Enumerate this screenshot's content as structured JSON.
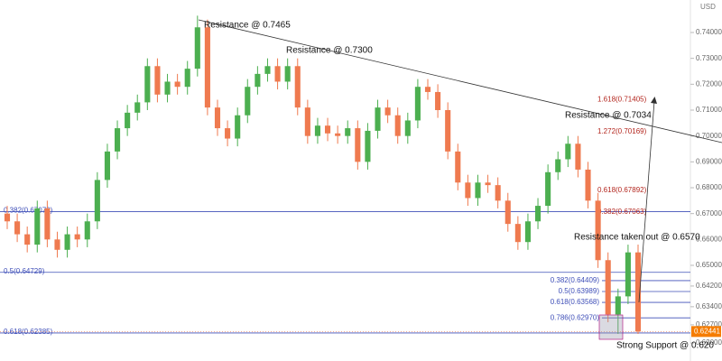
{
  "chart_data": {
    "type": "candlestick",
    "axis_label": "USD",
    "up_color": "#4caf50",
    "down_color": "#ef7a4f",
    "level_color": "#3f4fb8",
    "extension_color": "#b3261e",
    "grid": false,
    "ylim": [
      0.61302,
      0.75256
    ],
    "yticks": [
      {
        "value": 0.62,
        "label": "0.62000"
      },
      {
        "value": 0.627,
        "label": "0.62700"
      },
      {
        "value": 0.634,
        "label": "0.63400"
      },
      {
        "value": 0.642,
        "label": "0.64200"
      },
      {
        "value": 0.65,
        "label": "0.65000"
      },
      {
        "value": 0.66,
        "label": "0.66000"
      },
      {
        "value": 0.67,
        "label": "0.67000"
      },
      {
        "value": 0.68,
        "label": "0.68000"
      },
      {
        "value": 0.69,
        "label": "0.69000"
      },
      {
        "value": 0.7,
        "label": "0.70000"
      },
      {
        "value": 0.71,
        "label": "0.71000"
      },
      {
        "value": 0.72,
        "label": "0.72000"
      },
      {
        "value": 0.73,
        "label": "0.73000"
      },
      {
        "value": 0.74,
        "label": "0.74000"
      }
    ],
    "open": [
      0.67,
      0.667,
      0.662,
      0.658,
      0.672,
      0.66,
      0.656,
      0.662,
      0.66,
      0.667,
      0.683,
      0.694,
      0.703,
      0.709,
      0.713,
      0.727,
      0.716,
      0.721,
      0.719,
      0.726,
      0.742,
      0.711,
      0.703,
      0.699,
      0.708,
      0.719,
      0.724,
      0.727,
      0.721,
      0.727,
      0.711,
      0.7,
      0.704,
      0.701,
      0.7,
      0.703,
      0.69,
      0.702,
      0.711,
      0.708,
      0.7,
      0.706,
      0.719,
      0.717,
      0.71,
      0.694,
      0.682,
      0.676,
      0.682,
      0.681,
      0.675,
      0.666,
      0.659,
      0.667,
      0.673,
      0.686,
      0.691,
      0.697,
      0.687,
      0.675,
      0.652,
      0.631,
      0.638,
      0.655
    ],
    "high": [
      0.673,
      0.67,
      0.665,
      0.675,
      0.675,
      0.663,
      0.665,
      0.665,
      0.67,
      0.686,
      0.697,
      0.706,
      0.712,
      0.716,
      0.73,
      0.73,
      0.724,
      0.724,
      0.729,
      0.7465,
      0.745,
      0.714,
      0.706,
      0.711,
      0.722,
      0.727,
      0.73,
      0.73,
      0.73,
      0.73,
      0.714,
      0.707,
      0.707,
      0.704,
      0.706,
      0.706,
      0.705,
      0.714,
      0.714,
      0.711,
      0.709,
      0.722,
      0.722,
      0.72,
      0.713,
      0.697,
      0.685,
      0.685,
      0.685,
      0.684,
      0.678,
      0.669,
      0.67,
      0.676,
      0.689,
      0.694,
      0.7,
      0.7,
      0.69,
      0.678,
      0.655,
      0.641,
      0.658,
      0.658
    ],
    "low": [
      0.664,
      0.659,
      0.655,
      0.655,
      0.657,
      0.653,
      0.653,
      0.657,
      0.657,
      0.664,
      0.68,
      0.691,
      0.7,
      0.706,
      0.71,
      0.713,
      0.713,
      0.716,
      0.716,
      0.723,
      0.708,
      0.7,
      0.696,
      0.696,
      0.705,
      0.716,
      0.721,
      0.718,
      0.718,
      0.708,
      0.697,
      0.697,
      0.698,
      0.697,
      0.697,
      0.687,
      0.687,
      0.699,
      0.705,
      0.697,
      0.697,
      0.703,
      0.714,
      0.707,
      0.691,
      0.679,
      0.673,
      0.673,
      0.678,
      0.672,
      0.663,
      0.656,
      0.656,
      0.664,
      0.67,
      0.683,
      0.688,
      0.684,
      0.672,
      0.649,
      0.628,
      0.6235,
      0.635,
      0.6235
    ],
    "close": [
      0.667,
      0.662,
      0.658,
      0.672,
      0.66,
      0.656,
      0.662,
      0.66,
      0.667,
      0.683,
      0.694,
      0.703,
      0.709,
      0.713,
      0.727,
      0.716,
      0.721,
      0.719,
      0.726,
      0.742,
      0.711,
      0.703,
      0.699,
      0.708,
      0.719,
      0.724,
      0.727,
      0.721,
      0.727,
      0.711,
      0.7,
      0.704,
      0.701,
      0.7,
      0.703,
      0.69,
      0.702,
      0.711,
      0.708,
      0.7,
      0.706,
      0.719,
      0.717,
      0.71,
      0.694,
      0.682,
      0.676,
      0.682,
      0.681,
      0.675,
      0.666,
      0.659,
      0.667,
      0.673,
      0.686,
      0.691,
      0.697,
      0.687,
      0.675,
      0.652,
      0.631,
      0.638,
      0.655,
      0.6244
    ],
    "levels": [
      {
        "value": 0.67073,
        "label": "0.382(0.67073)"
      },
      {
        "value": 0.64729,
        "label": "0.5(0.64729)"
      },
      {
        "value": 0.62385,
        "label": "0.618(0.62385)"
      }
    ],
    "right_levels": [
      {
        "value": 0.64409,
        "label": "0.382(0.64409)"
      },
      {
        "value": 0.63989,
        "label": "0.5(0.63989)"
      },
      {
        "value": 0.63568,
        "label": "0.618(0.63568)"
      },
      {
        "value": 0.6297,
        "label": "0.786(0.62970)"
      }
    ],
    "extensions": [
      {
        "value": 0.71405,
        "label": "1.618(0.71405)"
      },
      {
        "value": 0.70169,
        "label": "1.272(0.70169)"
      },
      {
        "value": 0.67892,
        "label": "0.618(0.67892)"
      },
      {
        "value": 0.67063,
        "label": "0.382(0.67063)"
      }
    ],
    "annotations": [
      "Resistance @ 0.7465",
      "Resistance @ 0.7300",
      "Resistance @ 0.7034",
      "Resistance taken out @ 0.6570",
      "Strong Support @ 0.620"
    ],
    "last_price": {
      "value": 0.62441,
      "label": "0.62441"
    }
  }
}
